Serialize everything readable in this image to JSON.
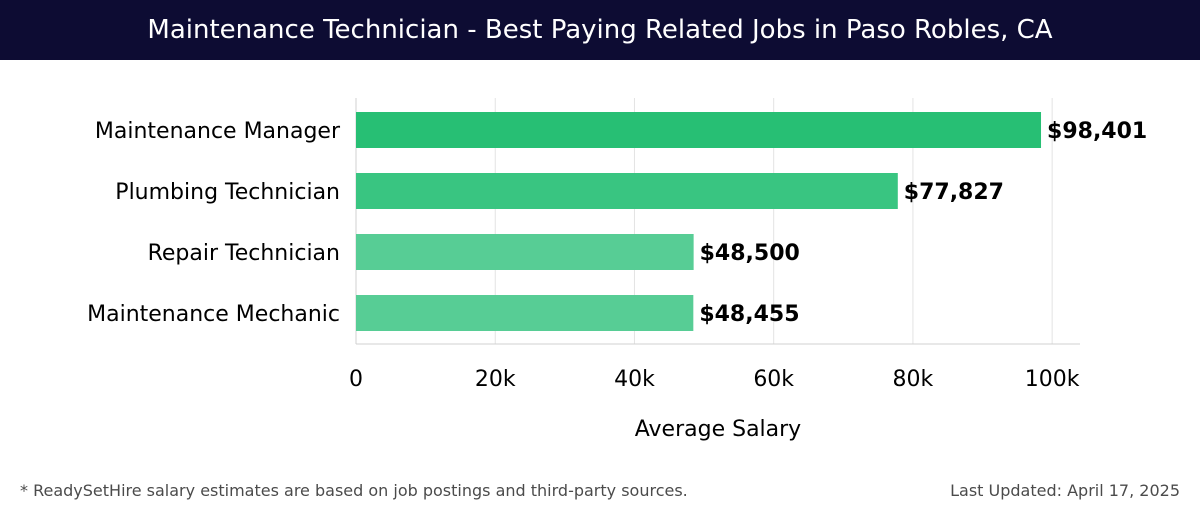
{
  "header": {
    "title": "Maintenance Technician - Best Paying Related Jobs in Paso Robles, CA"
  },
  "chart_data": {
    "type": "bar",
    "orientation": "horizontal",
    "title": "Maintenance Technician - Best Paying Related Jobs in Paso Robles, CA",
    "categories": [
      "Maintenance Manager",
      "Plumbing Technician",
      "Repair Technician",
      "Maintenance Mechanic"
    ],
    "values": [
      98401,
      77827,
      48500,
      48455
    ],
    "value_labels": [
      "$98,401",
      "$77,827",
      "$48,500",
      "$48,455"
    ],
    "bar_colors": [
      "#27bf74",
      "#39c581",
      "#57cd95",
      "#57cd95"
    ],
    "xlabel": "Average Salary",
    "ylabel": "",
    "xlim": [
      0,
      104000
    ],
    "xticks": [
      0,
      20000,
      40000,
      60000,
      80000,
      100000
    ],
    "xtick_labels": [
      "0",
      "20k",
      "40k",
      "60k",
      "80k",
      "100k"
    ],
    "grid": true
  },
  "footer": {
    "note": "* ReadySetHire salary estimates are based on job postings and third-party sources.",
    "updated": "Last Updated: April 17, 2025"
  },
  "colors": {
    "header_bg": "#0d0c33",
    "header_text": "#ffffff",
    "grid": "#e3e3e3",
    "text": "#000000",
    "footer_text": "#4b4b4b"
  }
}
